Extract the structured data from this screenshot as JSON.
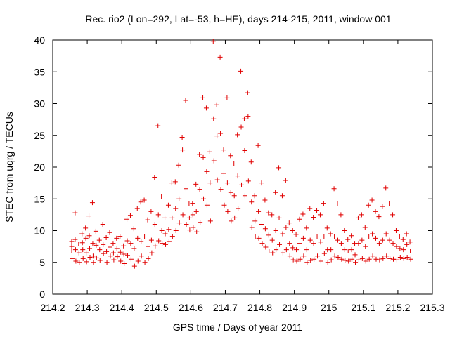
{
  "chart_data": {
    "type": "scatter",
    "title": "Rec. rio2 (Lon=292, Lat=-53, h=HE), days 214-215, 2011, window 001",
    "xlabel": "GPS time / Days of year 2011",
    "ylabel": "STEC from uqrg / TECUs",
    "xlim": [
      214.2,
      215.3
    ],
    "ylim": [
      0,
      40
    ],
    "xticks": [
      "214.2",
      "214.3",
      "214.4",
      "214.5",
      "214.6",
      "214.7",
      "214.8",
      "214.9",
      "215",
      "215.1",
      "215.2",
      "215.3"
    ],
    "yticks": [
      "0",
      "5",
      "10",
      "15",
      "20",
      "25",
      "30",
      "35",
      "40"
    ],
    "grid": false,
    "marker": "plus",
    "color": "#e00000",
    "series": [
      {
        "name": "STEC",
        "points": [
          [
            214.255,
            8.3
          ],
          [
            214.255,
            7.5
          ],
          [
            214.255,
            6.8
          ],
          [
            214.256,
            5.6
          ],
          [
            214.265,
            12.8
          ],
          [
            214.265,
            8.6
          ],
          [
            214.266,
            7.0
          ],
          [
            214.267,
            5.2
          ],
          [
            214.275,
            7.9
          ],
          [
            214.276,
            6.5
          ],
          [
            214.277,
            5.0
          ],
          [
            214.285,
            9.5
          ],
          [
            214.286,
            8.1
          ],
          [
            214.287,
            7.0
          ],
          [
            214.288,
            5.6
          ],
          [
            214.295,
            10.4
          ],
          [
            214.296,
            8.8
          ],
          [
            214.297,
            6.5
          ],
          [
            214.298,
            5.1
          ],
          [
            214.305,
            12.3
          ],
          [
            214.306,
            9.2
          ],
          [
            214.307,
            7.2
          ],
          [
            214.308,
            5.8
          ],
          [
            214.315,
            14.4
          ],
          [
            214.316,
            8.0
          ],
          [
            214.317,
            6.0
          ],
          [
            214.318,
            5.0
          ],
          [
            214.325,
            9.9
          ],
          [
            214.326,
            7.7
          ],
          [
            214.327,
            5.7
          ],
          [
            214.335,
            8.5
          ],
          [
            214.336,
            7.0
          ],
          [
            214.337,
            5.3
          ],
          [
            214.345,
            11.0
          ],
          [
            214.346,
            7.8
          ],
          [
            214.347,
            6.4
          ],
          [
            214.355,
            8.9
          ],
          [
            214.356,
            6.7
          ],
          [
            214.357,
            5.0
          ],
          [
            214.365,
            9.7
          ],
          [
            214.366,
            7.4
          ],
          [
            214.367,
            6.0
          ],
          [
            214.375,
            8.0
          ],
          [
            214.376,
            6.5
          ],
          [
            214.377,
            5.4
          ],
          [
            214.385,
            8.8
          ],
          [
            214.386,
            7.2
          ],
          [
            214.387,
            5.9
          ],
          [
            214.395,
            9.1
          ],
          [
            214.396,
            6.6
          ],
          [
            214.397,
            5.2
          ],
          [
            214.405,
            7.6
          ],
          [
            214.406,
            6.3
          ],
          [
            214.407,
            4.8
          ],
          [
            214.415,
            11.8
          ],
          [
            214.416,
            8.4
          ],
          [
            214.417,
            6.1
          ],
          [
            214.425,
            12.4
          ],
          [
            214.426,
            8.0
          ],
          [
            214.427,
            5.5
          ],
          [
            214.435,
            10.3
          ],
          [
            214.436,
            7.2
          ],
          [
            214.437,
            4.4
          ],
          [
            214.445,
            13.5
          ],
          [
            214.446,
            8.8
          ],
          [
            214.447,
            5.2
          ],
          [
            214.455,
            14.5
          ],
          [
            214.456,
            8.3
          ],
          [
            214.457,
            6.0
          ],
          [
            214.465,
            14.8
          ],
          [
            214.466,
            9.0
          ],
          [
            214.467,
            5.0
          ],
          [
            214.475,
            11.7
          ],
          [
            214.476,
            7.5
          ],
          [
            214.477,
            5.6
          ],
          [
            214.485,
            13.0
          ],
          [
            214.486,
            8.5
          ],
          [
            214.487,
            6.5
          ],
          [
            214.495,
            18.4
          ],
          [
            214.496,
            11.0
          ],
          [
            214.497,
            7.6
          ],
          [
            214.505,
            26.5
          ],
          [
            214.506,
            12.5
          ],
          [
            214.507,
            8.4
          ],
          [
            214.515,
            15.3
          ],
          [
            214.516,
            10.0
          ],
          [
            214.517,
            8.0
          ],
          [
            214.525,
            12.0
          ],
          [
            214.526,
            9.5
          ],
          [
            214.527,
            7.8
          ],
          [
            214.535,
            14.0
          ],
          [
            214.536,
            10.2
          ],
          [
            214.537,
            8.3
          ],
          [
            214.545,
            17.5
          ],
          [
            214.546,
            12.0
          ],
          [
            214.547,
            9.1
          ],
          [
            214.555,
            17.7
          ],
          [
            214.556,
            13.5
          ],
          [
            214.557,
            10.0
          ],
          [
            214.565,
            20.3
          ],
          [
            214.566,
            15.0
          ],
          [
            214.567,
            11.2
          ],
          [
            214.575,
            24.7
          ],
          [
            214.576,
            22.7
          ],
          [
            214.577,
            12.5
          ],
          [
            214.585,
            30.5
          ],
          [
            214.586,
            16.6
          ],
          [
            214.587,
            11.0
          ],
          [
            214.595,
            14.2
          ],
          [
            214.596,
            12.0
          ],
          [
            214.597,
            10.1
          ],
          [
            214.605,
            14.3
          ],
          [
            214.606,
            12.5
          ],
          [
            214.607,
            10.5
          ],
          [
            214.615,
            17.3
          ],
          [
            214.616,
            13.0
          ],
          [
            214.617,
            9.8
          ],
          [
            214.625,
            22.0
          ],
          [
            214.626,
            16.5
          ],
          [
            214.627,
            11.3
          ],
          [
            214.635,
            30.9
          ],
          [
            214.636,
            21.5
          ],
          [
            214.637,
            15.0
          ],
          [
            214.645,
            29.3
          ],
          [
            214.646,
            19.3
          ],
          [
            214.647,
            14.0
          ],
          [
            214.655,
            22.4
          ],
          [
            214.656,
            17.5
          ],
          [
            214.657,
            11.5
          ],
          [
            214.665,
            39.8
          ],
          [
            214.666,
            27.6
          ],
          [
            214.667,
            21.0
          ],
          [
            214.675,
            29.8
          ],
          [
            214.676,
            24.9
          ],
          [
            214.677,
            18.0
          ],
          [
            214.685,
            37.3
          ],
          [
            214.686,
            25.3
          ],
          [
            214.687,
            16.5
          ],
          [
            214.695,
            22.7
          ],
          [
            214.696,
            19.0
          ],
          [
            214.697,
            14.0
          ],
          [
            214.705,
            30.9
          ],
          [
            214.706,
            17.5
          ],
          [
            214.707,
            13.0
          ],
          [
            214.715,
            21.8
          ],
          [
            214.716,
            16.0
          ],
          [
            214.717,
            11.5
          ],
          [
            214.725,
            20.5
          ],
          [
            214.726,
            15.5
          ],
          [
            214.727,
            12.0
          ],
          [
            214.735,
            25.1
          ],
          [
            214.736,
            18.6
          ],
          [
            214.737,
            13.5
          ],
          [
            214.745,
            35.1
          ],
          [
            214.746,
            26.3
          ],
          [
            214.747,
            17.2
          ],
          [
            214.755,
            27.6
          ],
          [
            214.756,
            22.6
          ],
          [
            214.757,
            15.5
          ],
          [
            214.765,
            31.7
          ],
          [
            214.766,
            28.0
          ],
          [
            214.767,
            17.8
          ],
          [
            214.775,
            20.8
          ],
          [
            214.776,
            14.5
          ],
          [
            214.777,
            10.5
          ],
          [
            214.785,
            15.5
          ],
          [
            214.786,
            11.5
          ],
          [
            214.787,
            9.0
          ],
          [
            214.795,
            23.4
          ],
          [
            214.796,
            13.0
          ],
          [
            214.797,
            8.8
          ],
          [
            214.805,
            17.5
          ],
          [
            214.806,
            11.0
          ],
          [
            214.807,
            8.0
          ],
          [
            214.815,
            14.8
          ],
          [
            214.816,
            10.3
          ],
          [
            214.817,
            7.4
          ],
          [
            214.825,
            12.8
          ],
          [
            214.826,
            9.3
          ],
          [
            214.827,
            6.8
          ],
          [
            214.835,
            12.5
          ],
          [
            214.836,
            8.5
          ],
          [
            214.837,
            6.5
          ],
          [
            214.845,
            16.0
          ],
          [
            214.846,
            10.0
          ],
          [
            214.847,
            7.0
          ],
          [
            214.855,
            19.9
          ],
          [
            214.856,
            12.0
          ],
          [
            214.857,
            7.8
          ],
          [
            214.865,
            15.5
          ],
          [
            214.866,
            9.5
          ],
          [
            214.867,
            6.5
          ],
          [
            214.875,
            17.9
          ],
          [
            214.876,
            10.5
          ],
          [
            214.877,
            7.0
          ],
          [
            214.885,
            11.2
          ],
          [
            214.886,
            8.0
          ],
          [
            214.887,
            6.0
          ],
          [
            214.895,
            10.0
          ],
          [
            214.896,
            7.3
          ],
          [
            214.897,
            5.4
          ],
          [
            214.905,
            9.4
          ],
          [
            214.906,
            7.0
          ],
          [
            214.907,
            5.2
          ],
          [
            214.915,
            11.8
          ],
          [
            214.916,
            8.0
          ],
          [
            214.917,
            5.5
          ],
          [
            214.925,
            12.6
          ],
          [
            214.926,
            8.8
          ],
          [
            214.927,
            6.0
          ],
          [
            214.935,
            10.4
          ],
          [
            214.936,
            7.0
          ],
          [
            214.937,
            5.0
          ],
          [
            214.945,
            13.5
          ],
          [
            214.946,
            8.5
          ],
          [
            214.947,
            5.3
          ],
          [
            214.955,
            12.1
          ],
          [
            214.956,
            8.0
          ],
          [
            214.957,
            5.5
          ],
          [
            214.965,
            13.2
          ],
          [
            214.966,
            9.0
          ],
          [
            214.967,
            6.0
          ],
          [
            214.975,
            12.5
          ],
          [
            214.976,
            8.2
          ],
          [
            214.977,
            5.2
          ],
          [
            214.985,
            14.3
          ],
          [
            214.986,
            9.0
          ],
          [
            214.987,
            6.4
          ],
          [
            214.995,
            10.4
          ],
          [
            214.996,
            7.0
          ],
          [
            214.997,
            5.0
          ],
          [
            215.005,
            9.5
          ],
          [
            215.006,
            7.0
          ],
          [
            215.007,
            5.4
          ],
          [
            215.015,
            16.6
          ],
          [
            215.016,
            9.0
          ],
          [
            215.017,
            6.0
          ],
          [
            215.025,
            14.2
          ],
          [
            215.026,
            8.5
          ],
          [
            215.027,
            5.8
          ],
          [
            215.035,
            12.5
          ],
          [
            215.036,
            8.0
          ],
          [
            215.037,
            5.5
          ],
          [
            215.045,
            10.0
          ],
          [
            215.046,
            7.0
          ],
          [
            215.047,
            5.3
          ],
          [
            215.055,
            8.6
          ],
          [
            215.056,
            6.8
          ],
          [
            215.057,
            5.2
          ],
          [
            215.065,
            9.2
          ],
          [
            215.066,
            7.0
          ],
          [
            215.067,
            5.5
          ],
          [
            215.075,
            8.0
          ],
          [
            215.076,
            6.2
          ],
          [
            215.077,
            5.0
          ],
          [
            215.085,
            12.0
          ],
          [
            215.086,
            8.0
          ],
          [
            215.087,
            5.4
          ],
          [
            215.095,
            12.5
          ],
          [
            215.096,
            8.5
          ],
          [
            215.097,
            5.6
          ],
          [
            215.105,
            10.5
          ],
          [
            215.106,
            7.5
          ],
          [
            215.107,
            5.2
          ],
          [
            215.115,
            14.0
          ],
          [
            215.116,
            9.0
          ],
          [
            215.117,
            5.5
          ],
          [
            215.125,
            14.8
          ],
          [
            215.126,
            9.5
          ],
          [
            215.127,
            6.0
          ],
          [
            215.135,
            13.0
          ],
          [
            215.136,
            8.8
          ],
          [
            215.137,
            5.5
          ],
          [
            215.145,
            12.2
          ],
          [
            215.146,
            8.0
          ],
          [
            215.147,
            5.4
          ],
          [
            215.155,
            13.8
          ],
          [
            215.156,
            8.5
          ],
          [
            215.157,
            5.6
          ],
          [
            215.165,
            16.7
          ],
          [
            215.166,
            9.5
          ],
          [
            215.167,
            6.0
          ],
          [
            215.175,
            14.2
          ],
          [
            215.176,
            8.5
          ],
          [
            215.177,
            5.6
          ],
          [
            215.185,
            12.5
          ],
          [
            215.186,
            8.0
          ],
          [
            215.187,
            5.5
          ],
          [
            215.195,
            10.0
          ],
          [
            215.196,
            7.5
          ],
          [
            215.197,
            5.4
          ],
          [
            215.205,
            9.0
          ],
          [
            215.206,
            7.2
          ],
          [
            215.207,
            5.8
          ],
          [
            215.215,
            8.6
          ],
          [
            215.216,
            7.0
          ],
          [
            215.217,
            5.6
          ],
          [
            215.225,
            9.5
          ],
          [
            215.226,
            7.8
          ],
          [
            215.227,
            5.8
          ],
          [
            215.235,
            8.2
          ],
          [
            215.236,
            6.8
          ],
          [
            215.237,
            5.5
          ]
        ]
      }
    ]
  }
}
